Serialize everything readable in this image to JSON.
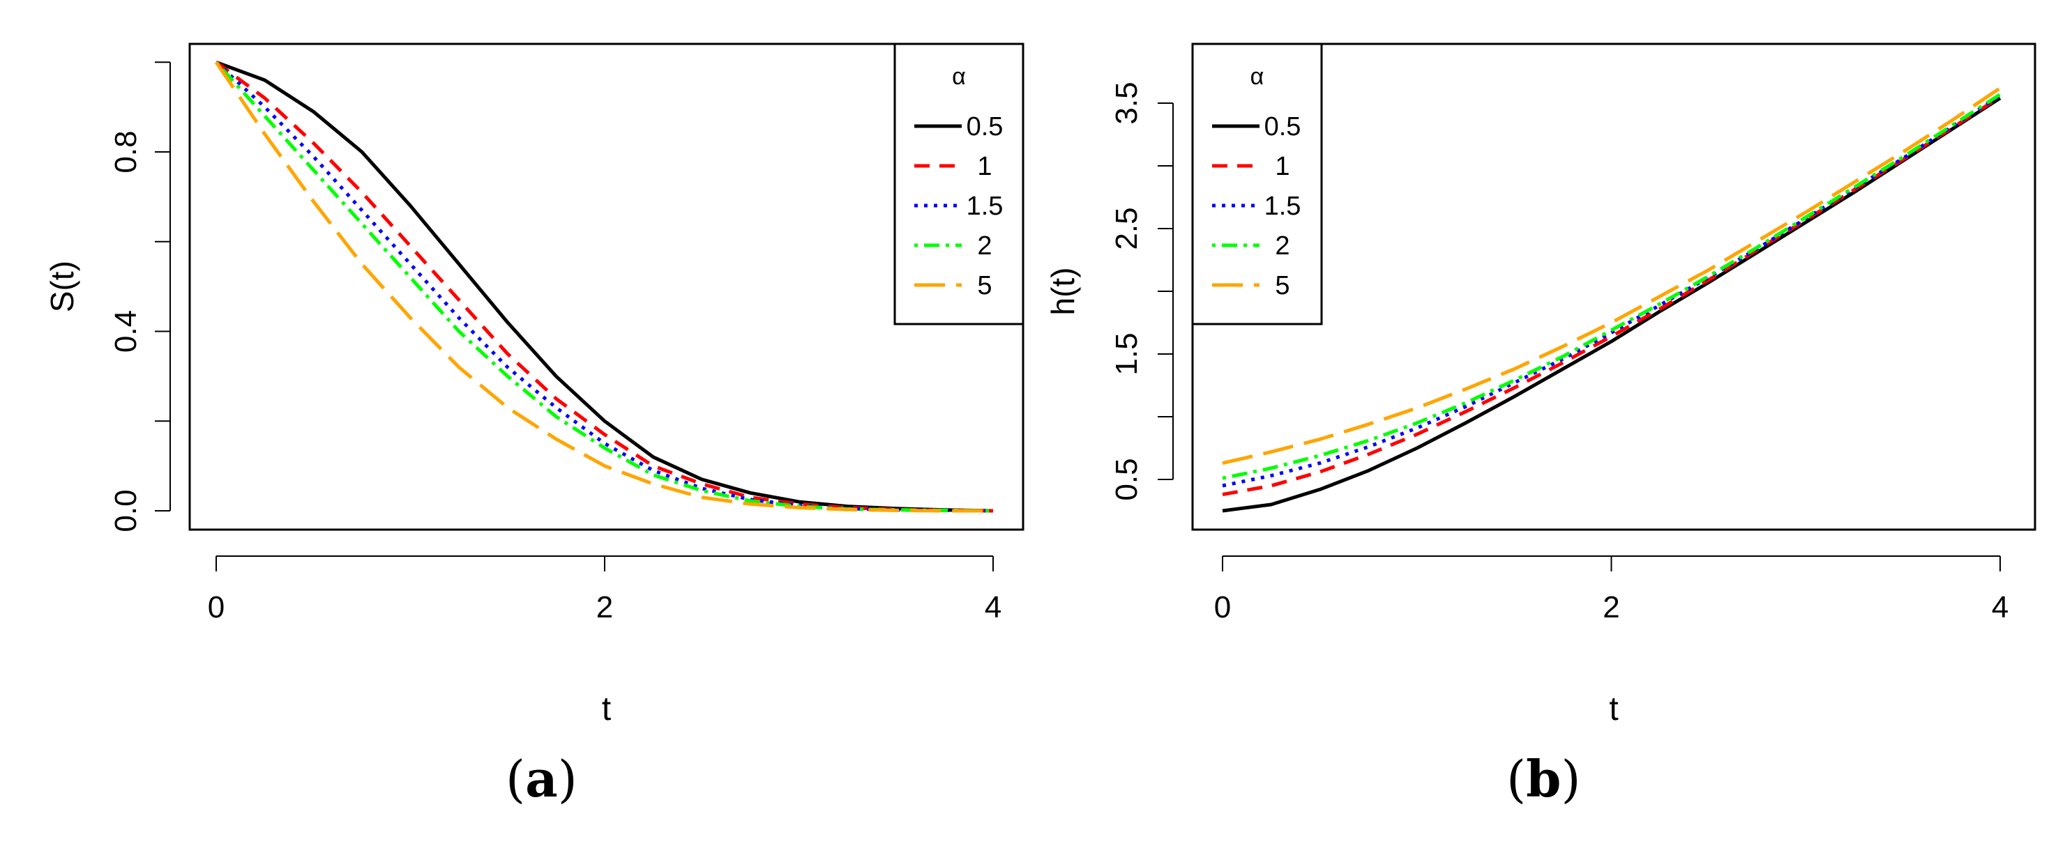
{
  "figure": {
    "panel_a_label": "a",
    "panel_b_label": "b"
  },
  "legend": {
    "title": "α",
    "entries": [
      "0.5",
      "1",
      "1.5",
      "2",
      "5"
    ]
  },
  "series_styles": [
    {
      "name": "0.5",
      "color": "#000000",
      "dash": "solid"
    },
    {
      "name": "1",
      "color": "#ff0000",
      "dash": "dashed"
    },
    {
      "name": "1.5",
      "color": "#0000ff",
      "dash": "dotted"
    },
    {
      "name": "2",
      "color": "#00ff00",
      "dash": "dotdash"
    },
    {
      "name": "5",
      "color": "#ffa500",
      "dash": "longdash"
    }
  ],
  "chart_data": [
    {
      "type": "line",
      "title": "",
      "xlabel": "t",
      "ylabel": "S(t)",
      "xlim": [
        0,
        4
      ],
      "ylim": [
        0,
        1
      ],
      "xticks": [
        0,
        2,
        4
      ],
      "yticks": [
        0.0,
        0.2,
        0.4,
        0.6,
        0.8,
        1.0
      ],
      "ytick_labels": [
        "0.0",
        "",
        "0.4",
        "",
        "0.8",
        ""
      ],
      "grid": false,
      "legend_position": "top-right",
      "x": [
        0,
        0.25,
        0.5,
        0.75,
        1.0,
        1.25,
        1.5,
        1.75,
        2.0,
        2.25,
        2.5,
        2.75,
        3.0,
        3.25,
        3.5,
        3.75,
        4.0
      ],
      "series": [
        {
          "name": "0.5",
          "values": [
            1.0,
            0.96,
            0.89,
            0.8,
            0.68,
            0.55,
            0.42,
            0.3,
            0.2,
            0.12,
            0.07,
            0.04,
            0.02,
            0.01,
            0.005,
            0.002,
            0.0
          ]
        },
        {
          "name": "1",
          "values": [
            1.0,
            0.92,
            0.82,
            0.71,
            0.59,
            0.47,
            0.35,
            0.25,
            0.17,
            0.1,
            0.06,
            0.03,
            0.015,
            0.007,
            0.003,
            0.001,
            0.0
          ]
        },
        {
          "name": "1.5",
          "values": [
            1.0,
            0.9,
            0.79,
            0.67,
            0.55,
            0.43,
            0.32,
            0.23,
            0.15,
            0.09,
            0.05,
            0.025,
            0.012,
            0.005,
            0.002,
            0.001,
            0.0
          ]
        },
        {
          "name": "2",
          "values": [
            1.0,
            0.88,
            0.76,
            0.64,
            0.52,
            0.4,
            0.3,
            0.21,
            0.14,
            0.08,
            0.045,
            0.022,
            0.01,
            0.004,
            0.002,
            0.001,
            0.0
          ]
        },
        {
          "name": "5",
          "values": [
            1.0,
            0.84,
            0.69,
            0.55,
            0.43,
            0.32,
            0.23,
            0.16,
            0.1,
            0.06,
            0.03,
            0.015,
            0.007,
            0.003,
            0.001,
            0.0,
            0.0
          ]
        }
      ]
    },
    {
      "type": "line",
      "title": "",
      "xlabel": "t",
      "ylabel": "h(t)",
      "xlim": [
        0,
        4
      ],
      "ylim": [
        0,
        4
      ],
      "xticks": [
        0,
        2,
        4
      ],
      "yticks": [
        0.5,
        1.0,
        1.5,
        2.0,
        2.5,
        3.0,
        3.5
      ],
      "ytick_labels": [
        "0.5",
        "",
        "1.5",
        "",
        "2.5",
        "",
        "3.5"
      ],
      "grid": false,
      "legend_position": "top-left",
      "x": [
        0,
        0.25,
        0.5,
        0.75,
        1.0,
        1.25,
        1.5,
        1.75,
        2.0,
        2.25,
        2.5,
        2.75,
        3.0,
        3.25,
        3.5,
        3.75,
        4.0
      ],
      "series": [
        {
          "name": "0.5",
          "values": [
            0.25,
            0.3,
            0.42,
            0.57,
            0.75,
            0.95,
            1.16,
            1.38,
            1.6,
            1.84,
            2.07,
            2.31,
            2.55,
            2.79,
            3.04,
            3.29,
            3.54
          ]
        },
        {
          "name": "1",
          "values": [
            0.38,
            0.45,
            0.56,
            0.7,
            0.86,
            1.04,
            1.23,
            1.43,
            1.64,
            1.86,
            2.09,
            2.33,
            2.57,
            2.81,
            3.05,
            3.3,
            3.55
          ]
        },
        {
          "name": "1.5",
          "values": [
            0.45,
            0.53,
            0.63,
            0.76,
            0.91,
            1.08,
            1.27,
            1.46,
            1.67,
            1.89,
            2.11,
            2.34,
            2.58,
            2.82,
            3.06,
            3.31,
            3.56
          ]
        },
        {
          "name": "2",
          "values": [
            0.51,
            0.59,
            0.69,
            0.81,
            0.95,
            1.11,
            1.29,
            1.48,
            1.69,
            1.9,
            2.12,
            2.35,
            2.59,
            2.83,
            3.07,
            3.32,
            3.57
          ]
        },
        {
          "name": "5",
          "values": [
            0.63,
            0.72,
            0.82,
            0.94,
            1.07,
            1.22,
            1.38,
            1.56,
            1.75,
            1.96,
            2.17,
            2.4,
            2.63,
            2.87,
            3.11,
            3.36,
            3.62
          ]
        }
      ]
    }
  ]
}
